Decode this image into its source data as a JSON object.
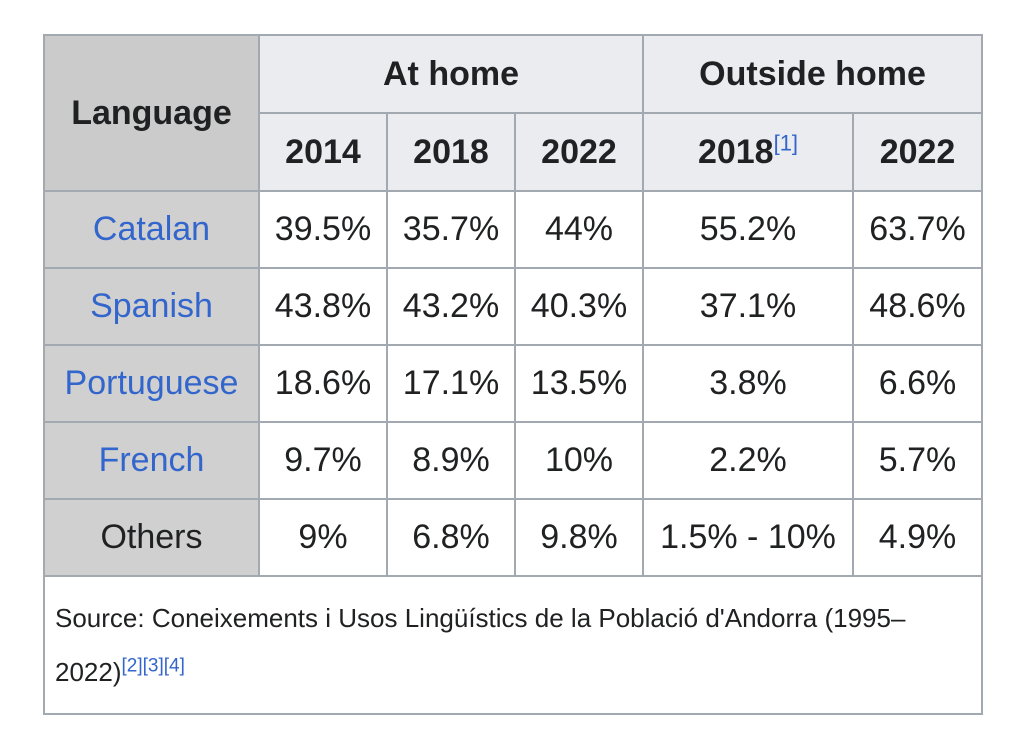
{
  "table": {
    "corner_label": "Language",
    "groups": [
      {
        "label": "At home"
      },
      {
        "label": "Outside home"
      }
    ],
    "years": [
      {
        "label": "2014",
        "ref": ""
      },
      {
        "label": "2018",
        "ref": ""
      },
      {
        "label": "2022",
        "ref": ""
      },
      {
        "label": "2018",
        "ref": "[1]"
      },
      {
        "label": "2022",
        "ref": ""
      }
    ],
    "rows": [
      {
        "language": "Catalan",
        "linked": true,
        "values": [
          "39.5%",
          "35.7%",
          "44%",
          "55.2%",
          "63.7%"
        ]
      },
      {
        "language": "Spanish",
        "linked": true,
        "values": [
          "43.8%",
          "43.2%",
          "40.3%",
          "37.1%",
          "48.6%"
        ]
      },
      {
        "language": "Portuguese",
        "linked": true,
        "values": [
          "18.6%",
          "17.1%",
          "13.5%",
          "3.8%",
          "6.6%"
        ]
      },
      {
        "language": "French",
        "linked": true,
        "values": [
          "9.7%",
          "8.9%",
          "10%",
          "2.2%",
          "5.7%"
        ]
      },
      {
        "language": "Others",
        "linked": false,
        "values": [
          "9%",
          "6.8%",
          "9.8%",
          "1.5% - 10%",
          "4.9%"
        ]
      }
    ],
    "source": {
      "text": "Source: Coneixements i Usos Lingüístics de la Població d'Andorra (1995–2022)",
      "refs": [
        "[2]",
        "[3]",
        "[4]"
      ]
    }
  },
  "colors": {
    "link": "#3366cc",
    "header_bg": "#eaecf0",
    "language_col_bg": "#d0d0d0",
    "border": "#a2a9b1",
    "text": "#202122"
  }
}
